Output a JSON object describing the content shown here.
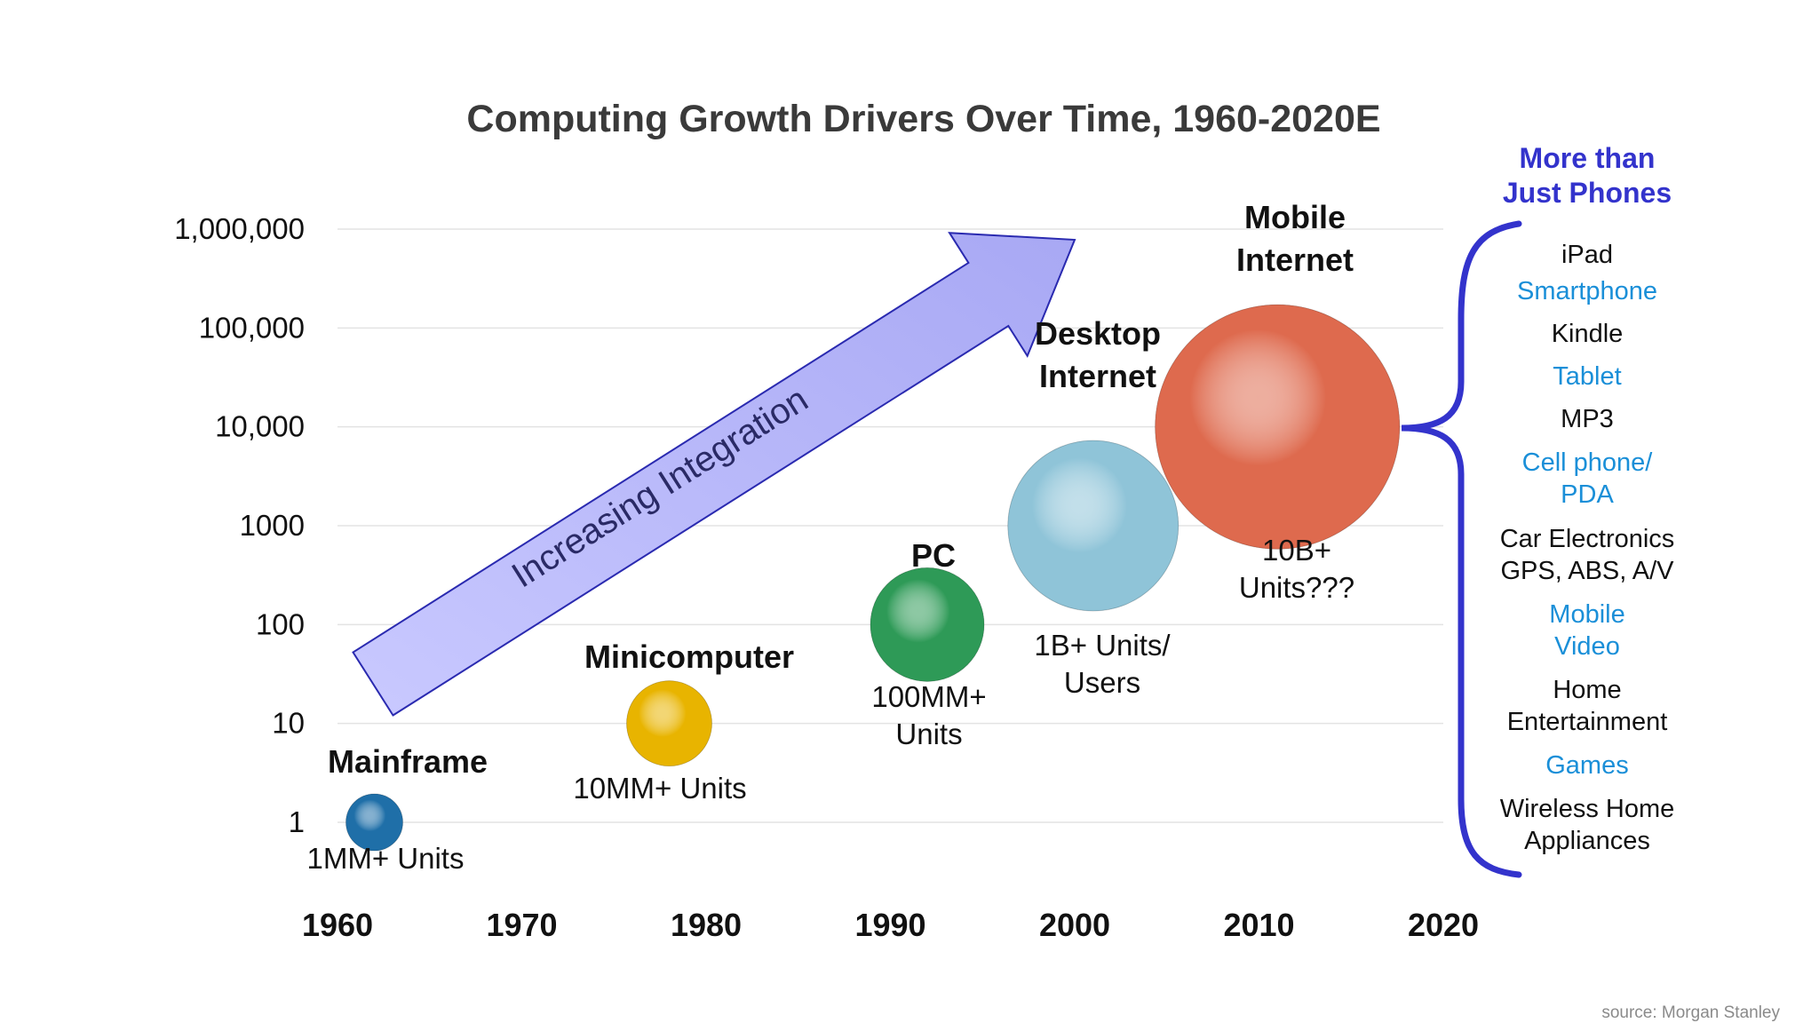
{
  "chart_data": {
    "type": "scatter",
    "title": "Computing Growth Drivers Over Time, 1960-2020E",
    "x_ticks": [
      "1960",
      "1970",
      "1980",
      "1990",
      "2000",
      "2010",
      "2020"
    ],
    "xlim": [
      1960,
      2020
    ],
    "y_ticks": [
      "1",
      "10",
      "100",
      "1000",
      "10,000",
      "100,000",
      "1,000,000"
    ],
    "y_scale": "log",
    "ylim": [
      1,
      1000000
    ],
    "grid": "horizontal",
    "points": [
      {
        "name": "Mainframe",
        "data_label": [
          "1MM+ Units"
        ],
        "x": 1962,
        "y": 1,
        "size": 1,
        "color": "#1f6fa8"
      },
      {
        "name": "Minicomputer",
        "data_label": [
          "10MM+ Units"
        ],
        "x": 1978,
        "y": 10,
        "size": 1.5,
        "color": "#e8b400"
      },
      {
        "name": "PC",
        "data_label": [
          "100MM+",
          "Units"
        ],
        "x": 1992,
        "y": 100,
        "size": 2,
        "color": "#2e9a57"
      },
      {
        "name": [
          "Desktop",
          "Internet"
        ],
        "data_label": [
          "1B+ Units/",
          "Users"
        ],
        "x": 2001,
        "y": 1000,
        "size": 3,
        "color": "#8fc4d8"
      },
      {
        "name": [
          "Mobile",
          "Internet"
        ],
        "data_label": [
          "10B+",
          "Units???"
        ],
        "x": 2011,
        "y": 10000,
        "size": 4.3,
        "color": "#de6a4e"
      }
    ],
    "annotation": "Increasing Integration"
  },
  "sidebar": {
    "header": [
      "More than",
      "Just Phones"
    ],
    "header_color": "#3333cc",
    "items": [
      {
        "text": [
          "iPad"
        ],
        "color": "#111111"
      },
      {
        "text": [
          "Smartphone"
        ],
        "color": "#1a8fd8"
      },
      {
        "text": [
          "Kindle"
        ],
        "color": "#111111"
      },
      {
        "text": [
          "Tablet"
        ],
        "color": "#1a8fd8"
      },
      {
        "text": [
          "MP3"
        ],
        "color": "#111111"
      },
      {
        "text": [
          "Cell phone/",
          "PDA"
        ],
        "color": "#1a8fd8"
      },
      {
        "text": [
          "Car Electronics",
          "GPS, ABS, A/V"
        ],
        "color": "#111111"
      },
      {
        "text": [
          "Mobile",
          "Video"
        ],
        "color": "#1a8fd8"
      },
      {
        "text": [
          "Home",
          "Entertainment"
        ],
        "color": "#111111"
      },
      {
        "text": [
          "Games"
        ],
        "color": "#1a8fd8"
      },
      {
        "text": [
          "Wireless Home",
          "Appliances"
        ],
        "color": "#111111"
      }
    ]
  },
  "source": "source: Morgan Stanley",
  "colors": {
    "brace": "#3333cc",
    "arrow_fill": "#b9b9ff",
    "arrow_stroke": "#2a2ab0"
  }
}
